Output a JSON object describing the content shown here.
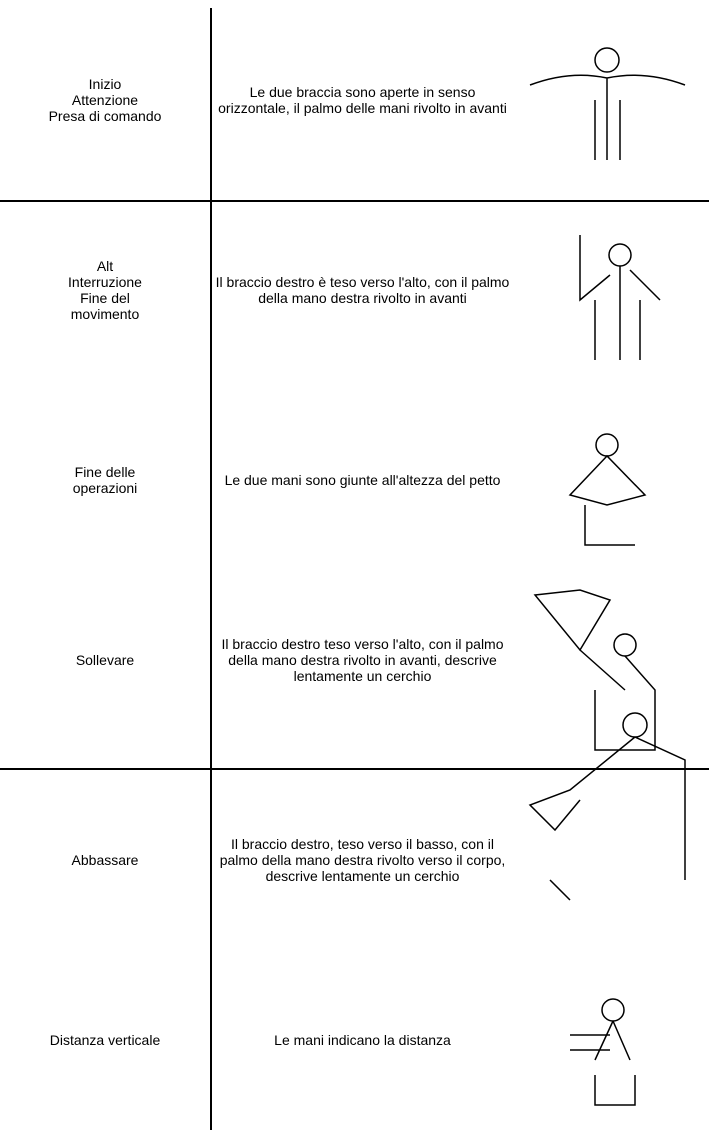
{
  "table": {
    "rows": [
      {
        "signal": [
          "Inizio",
          "Attenzione",
          "Presa di comando"
        ],
        "description": "Le due braccia sono aperte in senso orizzontale, il palmo delle mani rivolto in avanti"
      },
      {
        "signal": [
          "Alt",
          "Interruzione",
          "Fine del",
          "movimento"
        ],
        "description": "Il braccio destro è teso verso l'alto, con il palmo della mano destra rivolto in avanti"
      },
      {
        "signal": [
          "Fine delle",
          "operazioni"
        ],
        "description": "Le due mani sono giunte all'altezza del petto"
      },
      {
        "signal": [
          "Sollevare"
        ],
        "description": "Il braccio destro teso verso l'alto, con il palmo della mano destra rivolto in avanti, descrive lentamente un cerchio"
      },
      {
        "signal": [
          "Abbassare"
        ],
        "description": "Il braccio destro, teso verso il basso, con il palmo della mano destra rivolto verso il corpo, descrive lentamente un cerchio"
      },
      {
        "signal": [
          "Distanza verticale"
        ],
        "description": "Le mani indicano la distanza"
      }
    ]
  }
}
